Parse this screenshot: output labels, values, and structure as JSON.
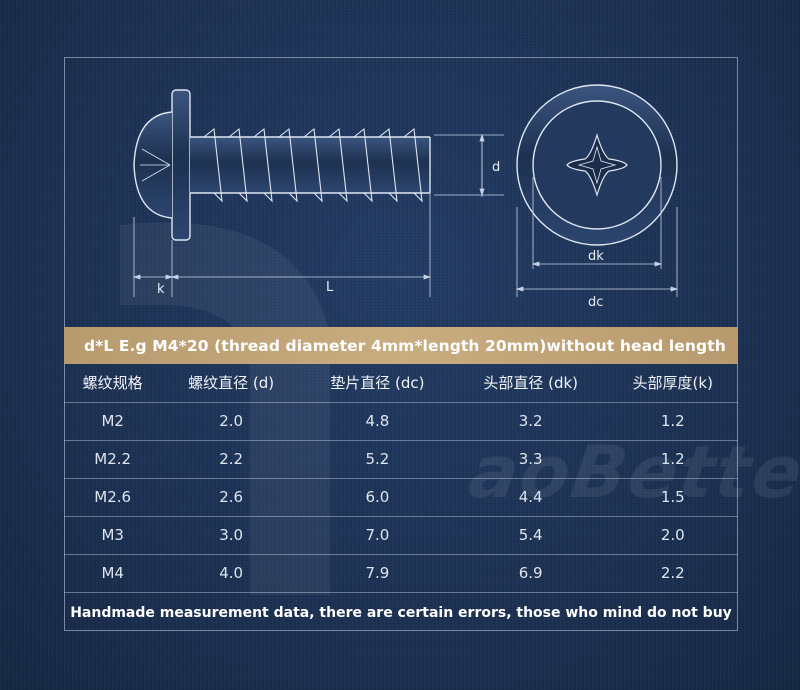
{
  "drawing": {
    "label_k": "k",
    "label_L": "L",
    "label_d": "d",
    "label_dk": "dk",
    "label_dc": "dc"
  },
  "banner": {
    "text": "d*L E.g M4*20 (thread diameter 4mm*length 20mm)without head length"
  },
  "table": {
    "headers": [
      "螺纹规格",
      "螺纹直径 (d)",
      "垫片直径 (dc)",
      "头部直径 (dk)",
      "头部厚度(k)"
    ],
    "rows": [
      [
        "M2",
        "2.0",
        "4.8",
        "3.2",
        "1.2"
      ],
      [
        "M2.2",
        "2.2",
        "5.2",
        "3.3",
        "1.2"
      ],
      [
        "M2.6",
        "2.6",
        "6.0",
        "4.4",
        "1.5"
      ],
      [
        "M3",
        "3.0",
        "7.0",
        "5.4",
        "2.0"
      ],
      [
        "M4",
        "4.0",
        "7.9",
        "6.9",
        "2.2"
      ]
    ]
  },
  "footer": {
    "text": "Handmade measurement data, there are certain errors, those who mind do not buy"
  },
  "watermark": {
    "text": "aoBetter"
  },
  "colors": {
    "background": "#1c3153",
    "banner": "#c2a77a",
    "line": "#c8d2e6"
  }
}
